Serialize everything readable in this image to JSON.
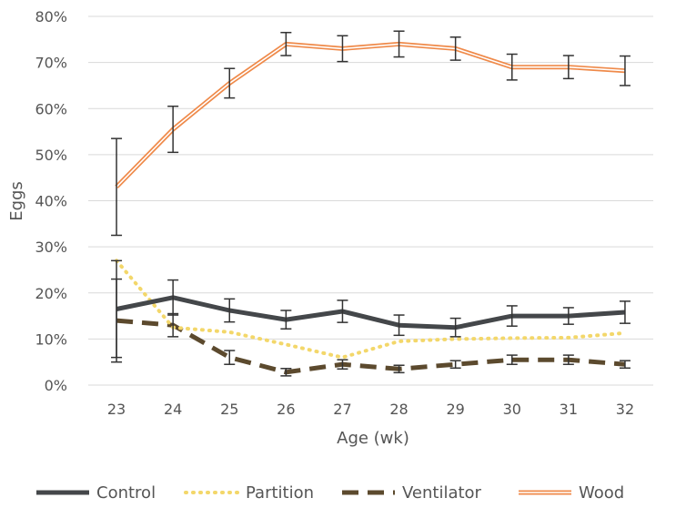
{
  "chart_data": {
    "type": "line",
    "xlabel": "Age (wk)",
    "ylabel": "Eggs",
    "x": [
      23,
      24,
      25,
      26,
      27,
      28,
      29,
      30,
      31,
      32
    ],
    "ylim": [
      0,
      80
    ],
    "y_ticks": [
      "0%",
      "10%",
      "20%",
      "30%",
      "40%",
      "50%",
      "60%",
      "70%",
      "80%"
    ],
    "y_tick_values": [
      0,
      10,
      20,
      30,
      40,
      50,
      60,
      70,
      80
    ],
    "grid": true,
    "legend_position": "bottom",
    "series": [
      {
        "name": "Control",
        "color": "#44474a",
        "style": "solid-thick",
        "values": [
          16.5,
          19.0,
          16.2,
          14.2,
          16.0,
          13.0,
          12.5,
          15.0,
          15.0,
          15.8
        ],
        "error": [
          10.5,
          3.8,
          2.5,
          2.0,
          2.4,
          2.2,
          2.0,
          2.2,
          1.8,
          2.4
        ]
      },
      {
        "name": "Partition",
        "color": "#f3d76a",
        "style": "dotted",
        "values": [
          27.0,
          12.5,
          11.5,
          8.8,
          6.0,
          9.5,
          10.0,
          10.2,
          10.3,
          11.3
        ]
      },
      {
        "name": "Ventilator",
        "color": "#5c4a2e",
        "style": "dashed",
        "values": [
          14.0,
          13.0,
          6.0,
          2.8,
          4.5,
          3.5,
          4.5,
          5.5,
          5.5,
          4.5
        ],
        "error": [
          9.0,
          2.5,
          1.5,
          0.8,
          1.0,
          0.8,
          0.8,
          1.0,
          1.0,
          0.8
        ]
      },
      {
        "name": "Wood",
        "color": "#ef8a4a",
        "style": "double",
        "values": [
          43.0,
          55.5,
          65.5,
          74.0,
          73.0,
          74.0,
          73.0,
          69.0,
          69.0,
          68.2
        ],
        "error": [
          10.5,
          5.0,
          3.2,
          2.5,
          2.8,
          2.8,
          2.5,
          2.8,
          2.5,
          3.2
        ]
      }
    ]
  }
}
